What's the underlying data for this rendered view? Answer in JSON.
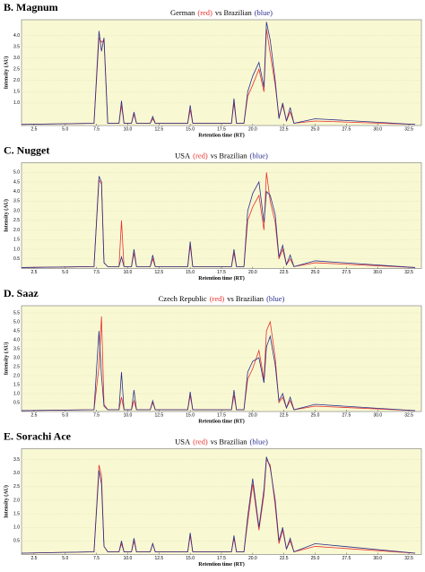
{
  "chart_data": [
    {
      "type": "line",
      "title": "B. Magnum",
      "subtitle": [
        "German",
        "(red)",
        "vs Brazilian",
        "(blue)"
      ],
      "x_label": "Retention time (RT)",
      "y_label": "Intensity (AU)",
      "x": [
        1.5,
        7.3,
        7.7,
        7.9,
        8.1,
        8.4,
        9.3,
        9.5,
        9.7,
        10.3,
        10.5,
        10.7,
        11.8,
        12.0,
        12.2,
        14.8,
        15.0,
        15.2,
        18.3,
        18.5,
        18.7,
        19.3,
        19.6,
        20.0,
        20.5,
        20.9,
        21.1,
        21.4,
        21.8,
        22.1,
        22.4,
        22.7,
        23.0,
        23.3,
        25.0,
        33.0
      ],
      "series": [
        {
          "name": "German",
          "color": "#e8312f",
          "values": [
            0.05,
            0.1,
            3.9,
            3.7,
            3.8,
            0.1,
            0.1,
            0.9,
            0.1,
            0.1,
            0.5,
            0.1,
            0.1,
            0.3,
            0.1,
            0.1,
            0.7,
            0.1,
            0.1,
            1.0,
            0.1,
            0.1,
            1.3,
            1.8,
            2.5,
            1.5,
            4.3,
            3.2,
            1.8,
            0.4,
            0.9,
            0.2,
            0.6,
            0.1,
            0.2,
            0.05
          ]
        },
        {
          "name": "Brazilian",
          "color": "#2b2f8c",
          "values": [
            0.05,
            0.1,
            4.2,
            3.3,
            3.9,
            0.1,
            0.1,
            1.1,
            0.1,
            0.1,
            0.6,
            0.1,
            0.1,
            0.4,
            0.1,
            0.1,
            0.9,
            0.1,
            0.1,
            1.2,
            0.1,
            0.1,
            1.5,
            2.2,
            2.8,
            1.7,
            4.6,
            3.8,
            2.0,
            0.3,
            1.0,
            0.2,
            0.8,
            0.1,
            0.3,
            0.05
          ]
        }
      ],
      "xlim": [
        1.5,
        33.5
      ],
      "xticks": [
        2.5,
        {
          "value": 5,
          "label": "5.0"
        },
        7.5,
        {
          "value": 10,
          "label": "10.0"
        },
        12.5,
        {
          "value": 15,
          "label": "15.0"
        },
        17.5,
        {
          "value": 20,
          "label": "20.0"
        },
        22.5,
        {
          "value": 25,
          "label": "25.0"
        },
        27.5,
        {
          "value": 30,
          "label": "30.0"
        },
        32.5
      ],
      "ylim": [
        0,
        4.7
      ],
      "yticks": [
        {
          "value": 1,
          "label": "1.0"
        },
        1.5,
        {
          "value": 2,
          "label": "2.0"
        },
        2.5,
        {
          "value": 3,
          "label": "3.0"
        },
        3.5,
        {
          "value": 4,
          "label": "4.0"
        }
      ]
    },
    {
      "type": "line",
      "title": "C. Nugget",
      "subtitle": [
        "USA",
        "(red)",
        "vs Brazilian",
        "(blue)"
      ],
      "x_label": "Retention time (RT)",
      "y_label": "Intensity (AU)",
      "x": [
        1.5,
        7.3,
        7.7,
        7.9,
        8.1,
        8.4,
        9.3,
        9.5,
        9.7,
        10.3,
        10.5,
        10.7,
        11.8,
        12.0,
        12.2,
        14.8,
        15.0,
        15.2,
        18.3,
        18.5,
        18.7,
        19.3,
        19.6,
        20.0,
        20.5,
        20.9,
        21.1,
        21.4,
        21.8,
        22.1,
        22.4,
        22.7,
        23.0,
        23.3,
        25.0,
        33.0
      ],
      "series": [
        {
          "name": "USA",
          "color": "#e8312f",
          "values": [
            0.05,
            0.1,
            4.6,
            4.4,
            0.3,
            0.1,
            0.1,
            2.5,
            0.1,
            0.1,
            0.8,
            0.1,
            0.1,
            0.5,
            0.1,
            0.1,
            1.2,
            0.1,
            0.1,
            0.8,
            0.1,
            0.1,
            2.5,
            3.2,
            3.8,
            2.0,
            5.0,
            3.5,
            2.4,
            0.5,
            1.0,
            0.2,
            0.5,
            0.1,
            0.3,
            0.05
          ]
        },
        {
          "name": "Brazilian",
          "color": "#2b2f8c",
          "values": [
            0.05,
            0.1,
            4.8,
            4.5,
            0.3,
            0.1,
            0.1,
            0.6,
            0.1,
            0.1,
            1.0,
            0.1,
            0.1,
            0.7,
            0.1,
            0.1,
            1.4,
            0.1,
            0.1,
            1.0,
            0.1,
            0.1,
            3.0,
            3.9,
            4.5,
            2.4,
            4.0,
            3.8,
            2.8,
            0.6,
            1.2,
            0.2,
            0.7,
            0.1,
            0.4,
            0.05
          ]
        }
      ],
      "xlim": [
        1.5,
        33.5
      ],
      "xticks": [
        2.5,
        {
          "value": 5,
          "label": "5.0"
        },
        7.5,
        {
          "value": 10,
          "label": "10.0"
        },
        12.5,
        {
          "value": 15,
          "label": "15.0"
        },
        17.5,
        {
          "value": 20,
          "label": "20.0"
        },
        22.5,
        {
          "value": 25,
          "label": "25.0"
        },
        27.5,
        {
          "value": 30,
          "label": "30.0"
        },
        32.5
      ],
      "ylim": [
        0,
        5.5
      ],
      "yticks": [
        0.5,
        {
          "value": 1,
          "label": "1.0"
        },
        1.5,
        {
          "value": 2,
          "label": "2.0"
        },
        2.5,
        {
          "value": 3,
          "label": "3.0"
        },
        3.5,
        {
          "value": 4,
          "label": "4.0"
        },
        4.5,
        {
          "value": 5,
          "label": "5.0"
        }
      ]
    },
    {
      "type": "line",
      "title": "D. Saaz",
      "subtitle": [
        "Czech Republic",
        "(red)",
        "vs Brazilian",
        "(blue)"
      ],
      "x_label": "Retention time (RT)",
      "y_label": "Intensity (AU)",
      "x": [
        1.5,
        7.3,
        7.7,
        7.9,
        8.1,
        8.4,
        9.3,
        9.5,
        9.7,
        10.3,
        10.5,
        10.7,
        11.8,
        12.0,
        12.2,
        14.8,
        15.0,
        15.2,
        18.3,
        18.5,
        18.7,
        19.3,
        19.6,
        20.0,
        20.5,
        20.9,
        21.1,
        21.4,
        21.8,
        22.1,
        22.4,
        22.7,
        23.0,
        23.3,
        25.0,
        33.0
      ],
      "series": [
        {
          "name": "Czech Republic",
          "color": "#e8312f",
          "values": [
            0.05,
            0.1,
            2.5,
            5.3,
            0.4,
            0.1,
            0.1,
            0.8,
            0.1,
            0.1,
            0.6,
            0.1,
            0.1,
            0.5,
            0.1,
            0.1,
            0.9,
            0.1,
            0.1,
            0.9,
            0.1,
            0.1,
            1.8,
            2.4,
            3.4,
            1.8,
            4.5,
            5.0,
            3.0,
            0.5,
            0.8,
            0.2,
            0.6,
            0.1,
            0.3,
            0.05
          ]
        },
        {
          "name": "Brazilian",
          "color": "#2b2f8c",
          "values": [
            0.05,
            0.1,
            4.5,
            2.0,
            0.3,
            0.1,
            0.1,
            2.2,
            0.1,
            0.1,
            1.2,
            0.1,
            0.1,
            0.6,
            0.1,
            0.1,
            1.1,
            0.1,
            0.1,
            1.2,
            0.1,
            0.1,
            2.2,
            2.8,
            3.0,
            1.6,
            3.6,
            4.2,
            2.6,
            0.6,
            1.0,
            0.2,
            0.8,
            0.1,
            0.4,
            0.05
          ]
        }
      ],
      "xlim": [
        1.5,
        33.5
      ],
      "xticks": [
        2.5,
        {
          "value": 5,
          "label": "5.0"
        },
        7.5,
        {
          "value": 10,
          "label": "10.0"
        },
        12.5,
        {
          "value": 15,
          "label": "15.0"
        },
        17.5,
        {
          "value": 20,
          "label": "20.0"
        },
        22.5,
        {
          "value": 25,
          "label": "25.0"
        },
        27.5,
        {
          "value": 30,
          "label": "30.0"
        },
        32.5
      ],
      "ylim": [
        0,
        5.9
      ],
      "yticks": [
        0.5,
        {
          "value": 1,
          "label": "1.0"
        },
        1.5,
        {
          "value": 2,
          "label": "2.0"
        },
        2.5,
        {
          "value": 3,
          "label": "3.0"
        },
        3.5,
        {
          "value": 4,
          "label": "4.0"
        },
        4.5,
        {
          "value": 5,
          "label": "5.0"
        },
        5.5
      ]
    },
    {
      "type": "line",
      "title": "E. Sorachi Ace",
      "subtitle": [
        "USA",
        "(red)",
        "vs Brazilian",
        "(blue)"
      ],
      "x_label": "Retention time (RT)",
      "y_label": "Intensity (AU)",
      "x": [
        1.5,
        7.3,
        7.7,
        7.9,
        8.1,
        8.4,
        9.3,
        9.5,
        9.7,
        10.3,
        10.5,
        10.7,
        11.8,
        12.0,
        12.2,
        14.8,
        15.0,
        15.2,
        18.3,
        18.5,
        18.7,
        19.3,
        19.6,
        20.0,
        20.5,
        20.9,
        21.1,
        21.4,
        21.8,
        22.1,
        22.4,
        22.7,
        23.0,
        23.3,
        25.0,
        33.0
      ],
      "series": [
        {
          "name": "USA",
          "color": "#e8312f",
          "values": [
            0.05,
            0.1,
            3.3,
            2.9,
            0.3,
            0.1,
            0.1,
            0.4,
            0.1,
            0.1,
            0.5,
            0.1,
            0.1,
            0.4,
            0.1,
            0.1,
            0.7,
            0.1,
            0.1,
            0.6,
            0.1,
            0.1,
            1.2,
            2.6,
            0.9,
            2.2,
            3.5,
            3.3,
            1.8,
            0.4,
            0.9,
            0.2,
            0.5,
            0.1,
            0.3,
            0.05
          ]
        },
        {
          "name": "Brazilian",
          "color": "#2b2f8c",
          "values": [
            0.05,
            0.1,
            3.1,
            2.6,
            0.3,
            0.1,
            0.1,
            0.5,
            0.1,
            0.1,
            0.6,
            0.1,
            0.1,
            0.4,
            0.1,
            0.1,
            0.8,
            0.1,
            0.1,
            0.7,
            0.1,
            0.1,
            1.4,
            2.8,
            1.0,
            2.4,
            3.6,
            3.2,
            2.0,
            0.5,
            1.0,
            0.2,
            0.6,
            0.1,
            0.4,
            0.05
          ]
        }
      ],
      "xlim": [
        1.5,
        33.5
      ],
      "xticks": [
        2.5,
        {
          "value": 5,
          "label": "5.0"
        },
        7.5,
        {
          "value": 10,
          "label": "10.0"
        },
        12.5,
        {
          "value": 15,
          "label": "15.0"
        },
        17.5,
        {
          "value": 20,
          "label": "20.0"
        },
        22.5,
        {
          "value": 25,
          "label": "25.0"
        },
        27.5,
        {
          "value": 30,
          "label": "30.0"
        },
        32.5
      ],
      "ylim": [
        0,
        3.9
      ],
      "yticks": [
        0.5,
        {
          "value": 1,
          "label": "1.0"
        },
        1.5,
        {
          "value": 2,
          "label": "2.0"
        },
        2.5,
        {
          "value": 3,
          "label": "3.0"
        },
        3.5
      ]
    }
  ]
}
